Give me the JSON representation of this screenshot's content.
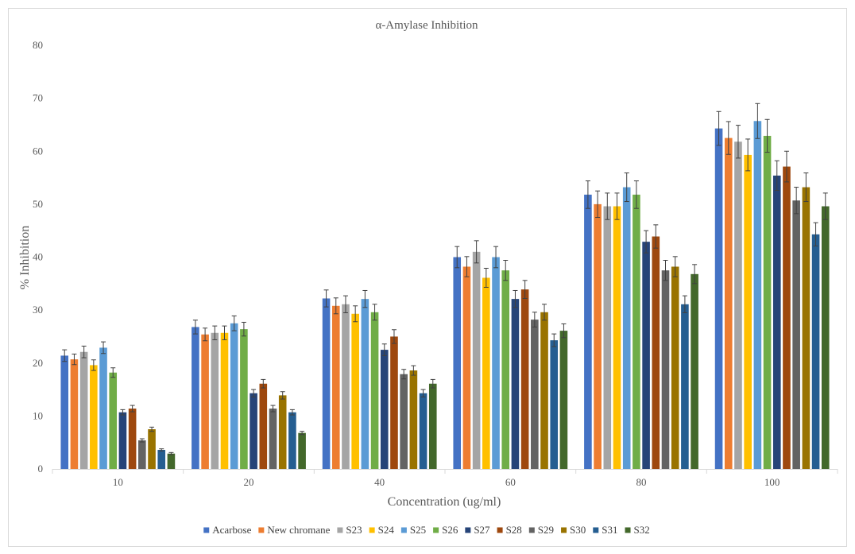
{
  "chart_data": {
    "type": "bar",
    "title": "α-Amylase Inhibition",
    "xlabel": "Concentration (ug/ml)",
    "ylabel": "% Inhibition",
    "ylim": [
      0,
      80
    ],
    "yticks": [
      0,
      10,
      20,
      30,
      40,
      50,
      60,
      70,
      80
    ],
    "grid": false,
    "legend_position": "bottom",
    "error_bars": true,
    "categories": [
      "10",
      "20",
      "40",
      "60",
      "80",
      "100"
    ],
    "series": [
      {
        "name": "Acarbose",
        "color": "#4472C4",
        "values": [
          21.4,
          26.8,
          32.2,
          40.0,
          51.8,
          64.3
        ],
        "errors": [
          1.1,
          1.3,
          1.6,
          2.0,
          2.6,
          3.2
        ]
      },
      {
        "name": "New chromane",
        "color": "#ED7D31",
        "values": [
          20.7,
          25.4,
          30.8,
          38.2,
          50.0,
          62.5
        ],
        "errors": [
          1.0,
          1.2,
          1.5,
          1.9,
          2.5,
          3.1
        ]
      },
      {
        "name": "S23",
        "color": "#A5A5A5",
        "values": [
          22.1,
          25.7,
          31.1,
          41.0,
          49.6,
          61.8
        ],
        "errors": [
          1.1,
          1.3,
          1.6,
          2.1,
          2.5,
          3.1
        ]
      },
      {
        "name": "S24",
        "color": "#FFC000",
        "values": [
          19.6,
          25.7,
          29.3,
          36.1,
          49.6,
          59.3
        ],
        "errors": [
          1.0,
          1.3,
          1.5,
          1.8,
          2.5,
          3.0
        ]
      },
      {
        "name": "S25",
        "color": "#5B9BD5",
        "values": [
          22.9,
          27.5,
          32.1,
          40.0,
          53.2,
          65.7
        ],
        "errors": [
          1.1,
          1.4,
          1.6,
          2.0,
          2.7,
          3.3
        ]
      },
      {
        "name": "S26",
        "color": "#70AD47",
        "values": [
          18.2,
          26.4,
          29.6,
          37.5,
          51.8,
          62.9
        ],
        "errors": [
          0.9,
          1.3,
          1.5,
          1.9,
          2.6,
          3.1
        ]
      },
      {
        "name": "S27",
        "color": "#264478",
        "values": [
          10.7,
          14.3,
          22.5,
          32.1,
          42.9,
          55.4
        ],
        "errors": [
          0.5,
          0.7,
          1.1,
          1.6,
          2.1,
          2.8
        ]
      },
      {
        "name": "S28",
        "color": "#9E480E",
        "values": [
          11.4,
          16.1,
          25.0,
          33.9,
          43.9,
          57.1
        ],
        "errors": [
          0.6,
          0.8,
          1.3,
          1.7,
          2.2,
          2.9
        ]
      },
      {
        "name": "S29",
        "color": "#636363",
        "values": [
          5.4,
          11.4,
          17.9,
          28.2,
          37.5,
          50.7
        ],
        "errors": [
          0.3,
          0.6,
          0.9,
          1.4,
          1.9,
          2.5
        ]
      },
      {
        "name": "S30",
        "color": "#997300",
        "values": [
          7.5,
          13.9,
          18.6,
          29.6,
          38.2,
          53.2
        ],
        "errors": [
          0.4,
          0.7,
          0.9,
          1.5,
          1.9,
          2.7
        ]
      },
      {
        "name": "S31",
        "color": "#255E91",
        "values": [
          3.6,
          10.7,
          14.3,
          24.3,
          31.1,
          44.3
        ],
        "errors": [
          0.2,
          0.5,
          0.7,
          1.2,
          1.6,
          2.2
        ]
      },
      {
        "name": "S32",
        "color": "#43682B",
        "values": [
          2.9,
          6.8,
          16.1,
          26.1,
          36.8,
          49.6
        ],
        "errors": [
          0.2,
          0.3,
          0.8,
          1.3,
          1.8,
          2.5
        ]
      }
    ]
  }
}
